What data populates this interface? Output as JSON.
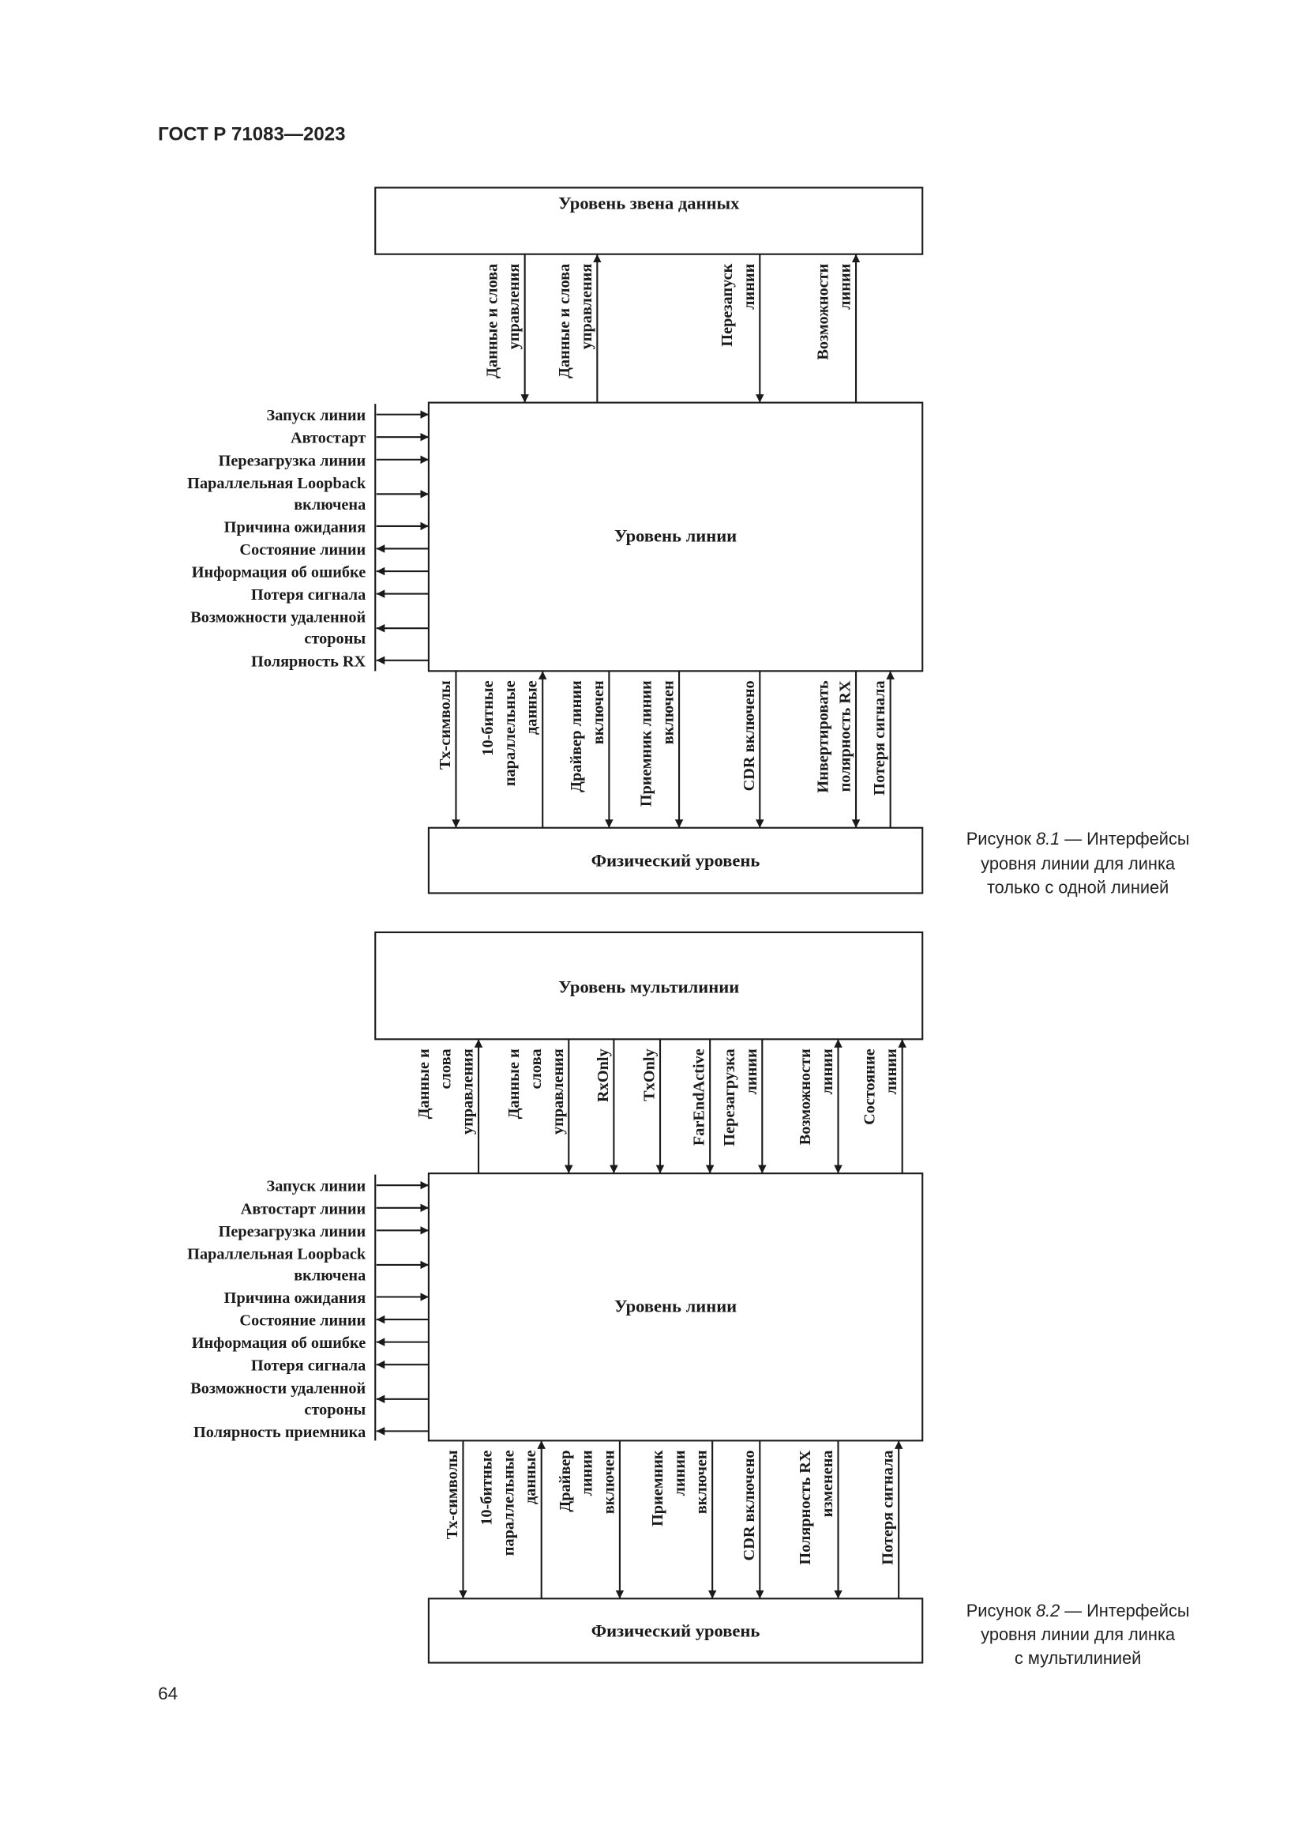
{
  "header": {
    "doc_id": "ГОСТ Р 71083—2023"
  },
  "page_number": "64",
  "figures": [
    {
      "top_box": "Уровень звена данных",
      "line_box": "Уровень линии",
      "phys_box": "Физический уровень",
      "caption": {
        "prefix": "Рисунок ",
        "number": "8.1",
        "lines": [
          "— Интерфейсы",
          "уровня линии для линка",
          "только с одной линией"
        ]
      },
      "left_signals": [
        {
          "lines": [
            "Запуск линии"
          ],
          "direction": "in"
        },
        {
          "lines": [
            "Автостарт"
          ],
          "direction": "in"
        },
        {
          "lines": [
            "Перезагрузка линии"
          ],
          "direction": "in"
        },
        {
          "lines": [
            "Параллельная Loopback",
            "включена"
          ],
          "direction": "in"
        },
        {
          "lines": [
            "Причина ожидания"
          ],
          "direction": "in"
        },
        {
          "lines": [
            "Состояние линии"
          ],
          "direction": "out"
        },
        {
          "lines": [
            "Информация об ошибке"
          ],
          "direction": "out"
        },
        {
          "lines": [
            "Потеря сигнала"
          ],
          "direction": "out"
        },
        {
          "lines": [
            "Возможности удаленной",
            "стороны"
          ],
          "direction": "out"
        },
        {
          "lines": [
            "Полярность RX"
          ],
          "direction": "out"
        }
      ],
      "top_signals": [
        {
          "lines": [
            "Данные и слова",
            "управления"
          ],
          "direction": "down"
        },
        {
          "lines": [
            "Данные и слова",
            "управления"
          ],
          "direction": "up"
        },
        {
          "lines": [
            "Перезапуск",
            "линии"
          ],
          "direction": "down"
        },
        {
          "lines": [
            "Возможности",
            "линии"
          ],
          "direction": "up"
        }
      ],
      "bottom_signals": [
        {
          "lines": [
            "Tx-символы"
          ],
          "direction": "down"
        },
        {
          "lines": [
            "10-битные",
            "параллельные",
            "данные"
          ],
          "direction": "up"
        },
        {
          "lines": [
            "Драйвер линии",
            "включен"
          ],
          "direction": "down"
        },
        {
          "lines": [
            "Приемник линии",
            "включен"
          ],
          "direction": "down"
        },
        {
          "lines": [
            "CDR включено"
          ],
          "direction": "down"
        },
        {
          "lines": [
            "Инвертировать",
            "полярность RX"
          ],
          "direction": "down"
        },
        {
          "lines": [
            "Потеря сигнала"
          ],
          "direction": "up"
        }
      ]
    },
    {
      "top_box": "Уровень мультилинии",
      "line_box": "Уровень линии",
      "phys_box": "Физический уровень",
      "caption": {
        "prefix": "Рисунок ",
        "number": "8.2",
        "lines": [
          "— Интерфейсы",
          "уровня линии для линка",
          "с мультилинией"
        ]
      },
      "left_signals": [
        {
          "lines": [
            "Запуск линии"
          ],
          "direction": "in"
        },
        {
          "lines": [
            "Автостарт линии"
          ],
          "direction": "in"
        },
        {
          "lines": [
            "Перезагрузка линии"
          ],
          "direction": "in"
        },
        {
          "lines": [
            "Параллельная Loopback",
            "включена"
          ],
          "direction": "in"
        },
        {
          "lines": [
            "Причина ожидания"
          ],
          "direction": "in"
        },
        {
          "lines": [
            "Состояние линии"
          ],
          "direction": "out"
        },
        {
          "lines": [
            "Информация об ошибке"
          ],
          "direction": "out"
        },
        {
          "lines": [
            "Потеря сигнала"
          ],
          "direction": "out"
        },
        {
          "lines": [
            "Возможности удаленной",
            "стороны"
          ],
          "direction": "out"
        },
        {
          "lines": [
            "Полярность приемника"
          ],
          "direction": "out"
        }
      ],
      "top_signals": [
        {
          "lines": [
            "Данные и",
            "слова",
            "управления"
          ],
          "direction": "up"
        },
        {
          "lines": [
            "Данные и",
            "слова",
            "управления"
          ],
          "direction": "down"
        },
        {
          "lines": [
            "RxOnly"
          ],
          "direction": "down"
        },
        {
          "lines": [
            "TxOnly"
          ],
          "direction": "down"
        },
        {
          "lines": [
            "FarEndActive"
          ],
          "direction": "down"
        },
        {
          "lines": [
            "Перезагрузка",
            "линии"
          ],
          "direction": "down"
        },
        {
          "lines": [
            "Возможности",
            "линии"
          ],
          "direction": "both"
        },
        {
          "lines": [
            "Состояние",
            "линии"
          ],
          "direction": "up"
        }
      ],
      "bottom_signals": [
        {
          "lines": [
            "Tx-символы"
          ],
          "direction": "down"
        },
        {
          "lines": [
            "10-битные",
            "параллельные",
            "данные"
          ],
          "direction": "up"
        },
        {
          "lines": [
            "Драйвер",
            "линии",
            "включен"
          ],
          "direction": "down"
        },
        {
          "lines": [
            "Приемник",
            "линии",
            "включен"
          ],
          "direction": "down"
        },
        {
          "lines": [
            "CDR включено"
          ],
          "direction": "down"
        },
        {
          "lines": [
            "Полярность RX",
            "изменена"
          ],
          "direction": "down"
        },
        {
          "lines": [
            "Потеря сигнала"
          ],
          "direction": "up"
        }
      ]
    }
  ]
}
